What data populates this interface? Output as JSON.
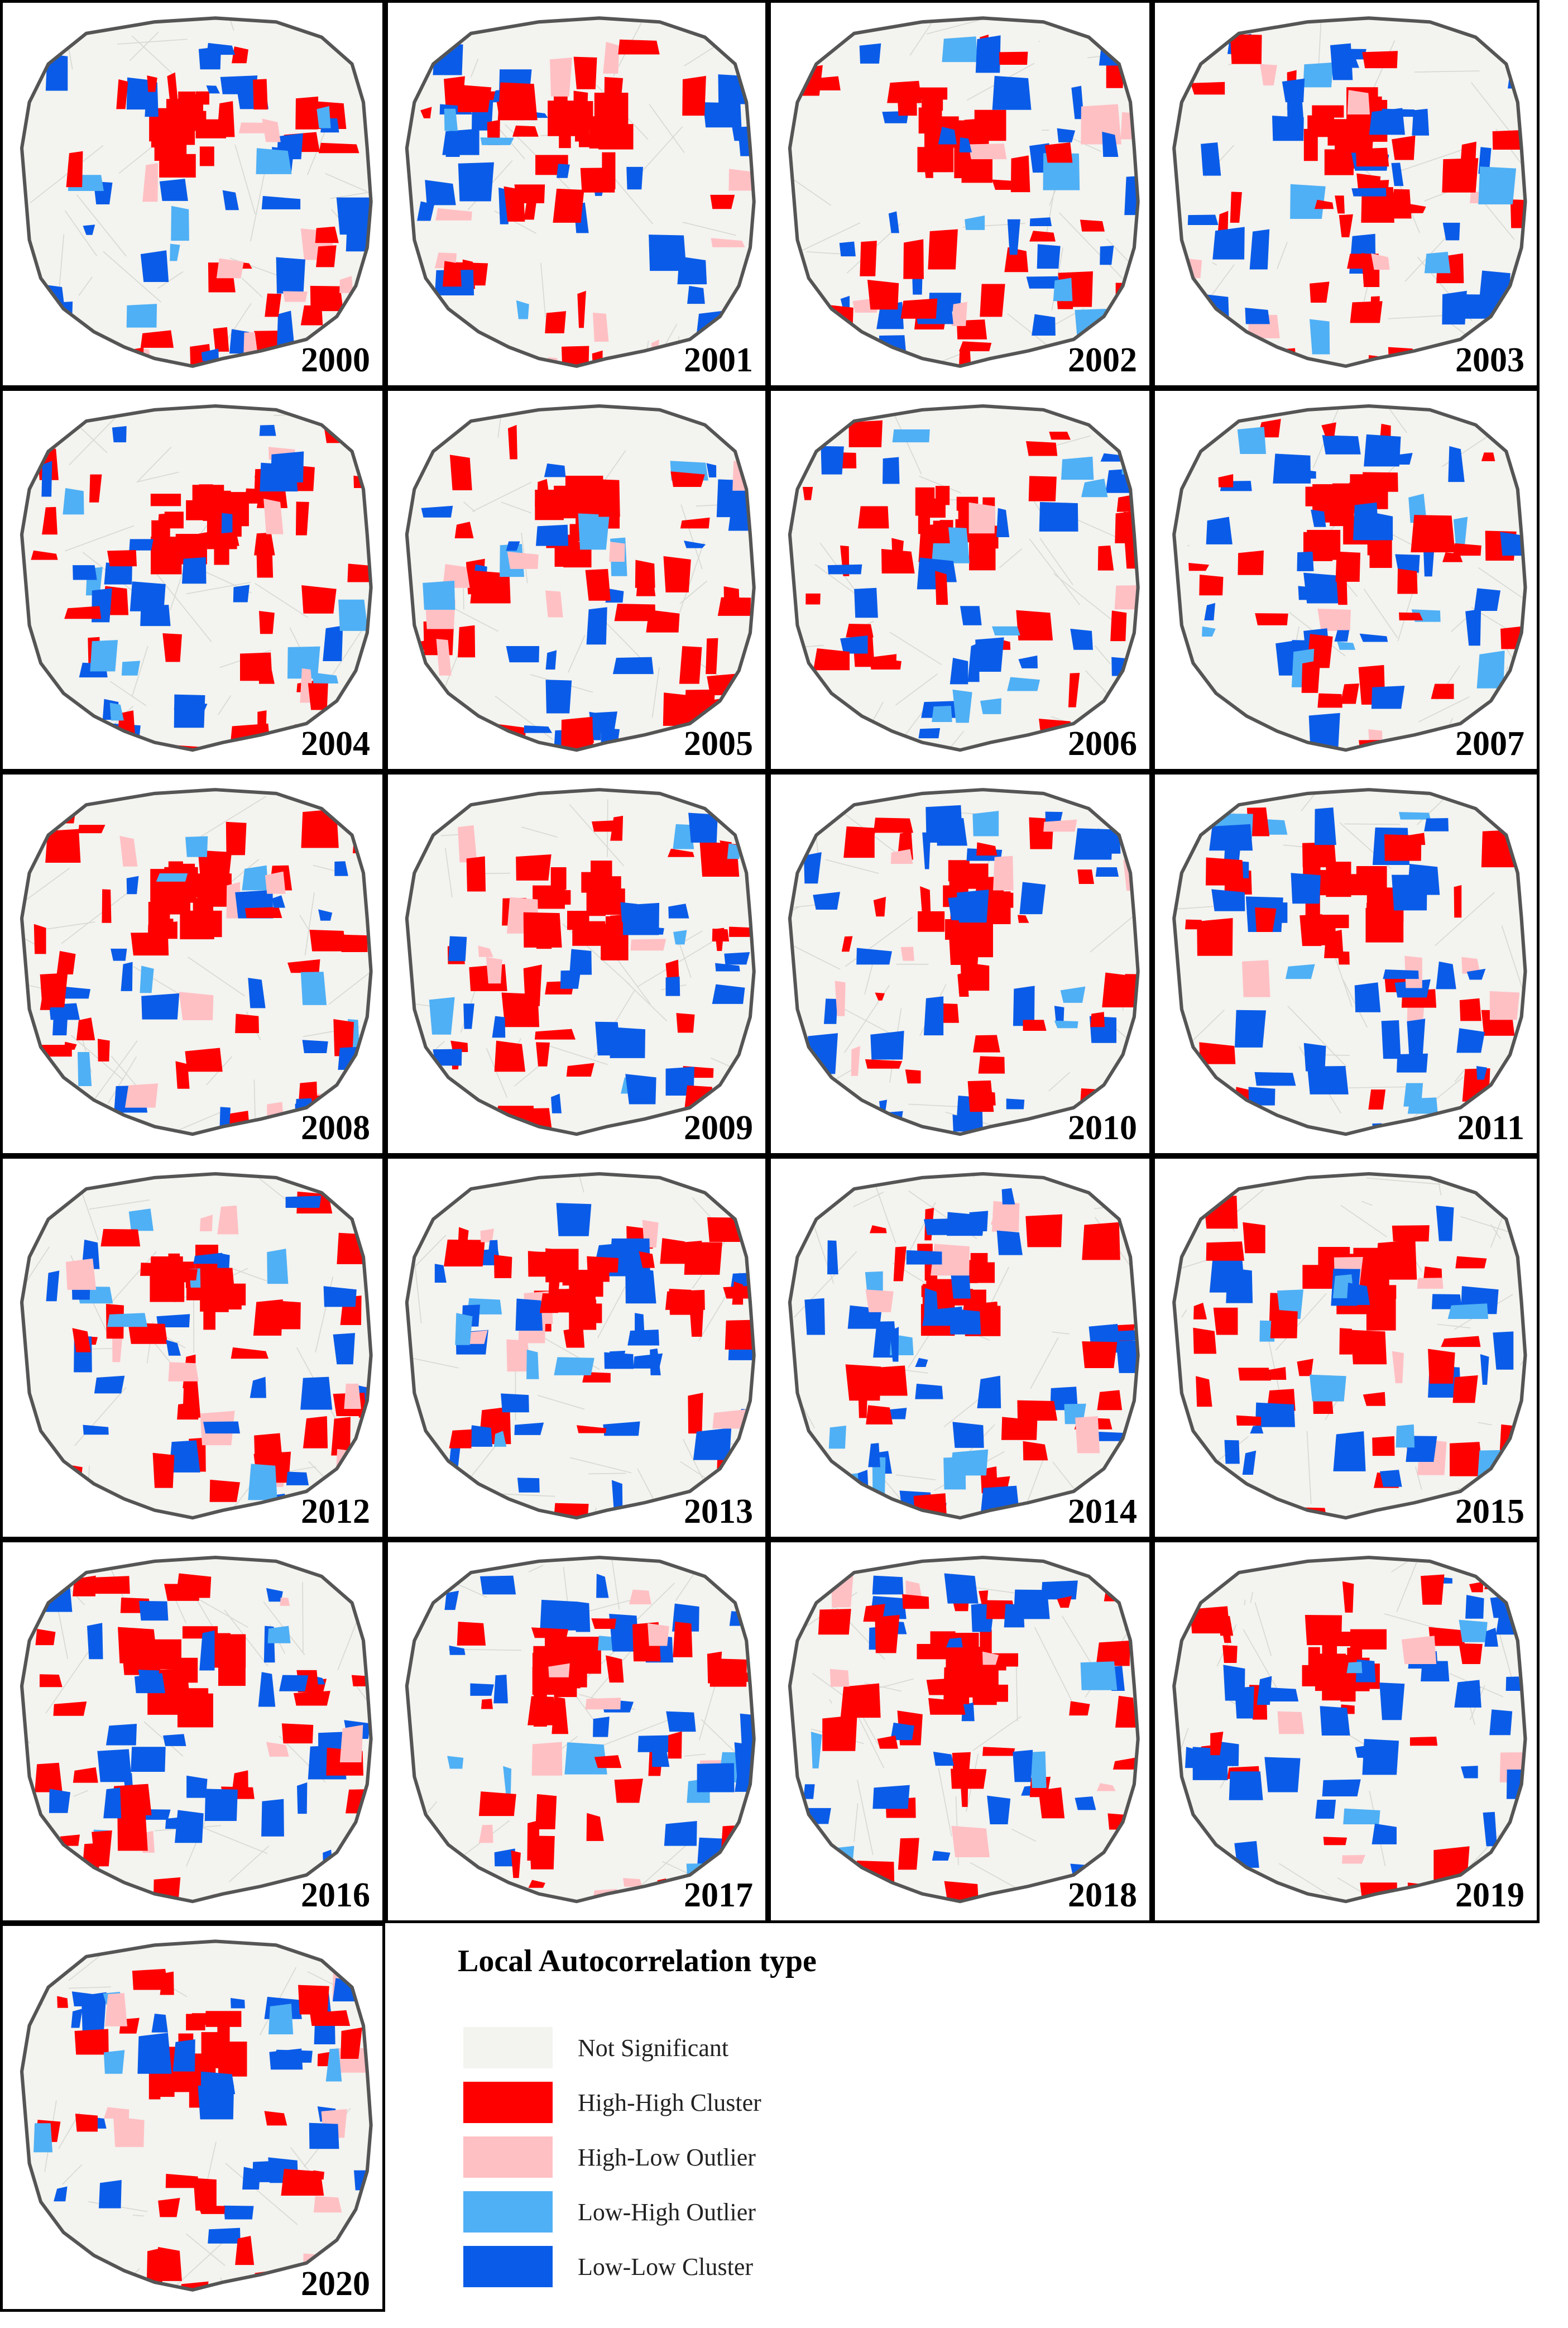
{
  "figure": {
    "colors": {
      "not_significant": "#f3f3ef",
      "high_high": "#ff0000",
      "high_low": "#ffc0c4",
      "low_high": "#4fb0f5",
      "low_low": "#0a5ce8",
      "boundary": "#555555"
    },
    "panels": [
      {
        "year": "2000"
      },
      {
        "year": "2001"
      },
      {
        "year": "2002"
      },
      {
        "year": "2003"
      },
      {
        "year": "2004"
      },
      {
        "year": "2005"
      },
      {
        "year": "2006"
      },
      {
        "year": "2007"
      },
      {
        "year": "2008"
      },
      {
        "year": "2009"
      },
      {
        "year": "2010"
      },
      {
        "year": "2011"
      },
      {
        "year": "2012"
      },
      {
        "year": "2013"
      },
      {
        "year": "2014"
      },
      {
        "year": "2015"
      },
      {
        "year": "2016"
      },
      {
        "year": "2017"
      },
      {
        "year": "2018"
      },
      {
        "year": "2019"
      },
      {
        "year": "2020"
      }
    ]
  },
  "legend": {
    "title": "Local Autocorrelation type",
    "items": [
      {
        "label": "Not Significant",
        "color": "#f3f3ef"
      },
      {
        "label": "High-High Cluster",
        "color": "#ff0000"
      },
      {
        "label": "High-Low Outlier",
        "color": "#ffc0c4"
      },
      {
        "label": "Low-High Outlier",
        "color": "#4fb0f5"
      },
      {
        "label": "Low-Low Cluster",
        "color": "#0a5ce8"
      }
    ]
  }
}
